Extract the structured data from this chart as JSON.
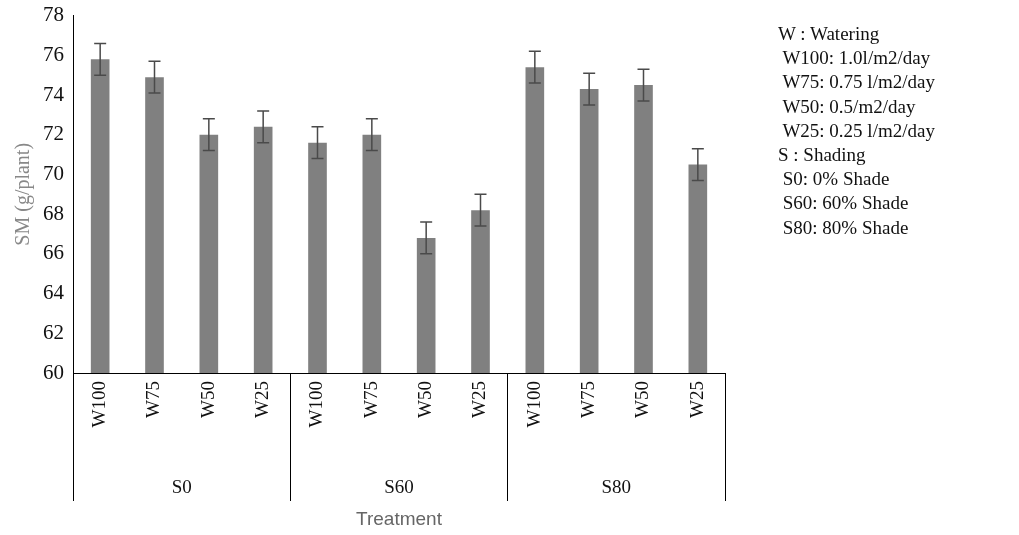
{
  "chart_data": {
    "type": "bar",
    "xlabel": "Treatment",
    "ylabel": "SM (g/plant)",
    "categories": [
      "W100",
      "W75",
      "W50",
      "W25",
      "W100",
      "W75",
      "W50",
      "W25",
      "W100",
      "W75",
      "W50",
      "W25"
    ],
    "values": [
      75.8,
      74.9,
      72.0,
      72.4,
      71.6,
      72.0,
      66.8,
      68.2,
      75.4,
      74.3,
      74.5,
      70.5
    ],
    "errors": [
      0.8,
      0.8,
      0.8,
      0.8,
      0.8,
      0.8,
      0.8,
      0.8,
      0.8,
      0.8,
      0.8,
      0.8
    ],
    "color": "#808080",
    "ylim": [
      60,
      78
    ],
    "yticks": [
      60,
      62,
      64,
      66,
      68,
      70,
      72,
      74,
      76,
      78
    ],
    "grid": false,
    "annotations": [
      "S0",
      "S60",
      "S80",
      "W : Watering\n W100: 1.0l/m2/day\n W75: 0.75 l/m2/day\n W50: 0.5/m2/day\n W25: 0.25 l/m2/day\nS : Shading\n S0: 0% Shade\n S60: 60% Shade\n S80: 80% Shade"
    ]
  }
}
